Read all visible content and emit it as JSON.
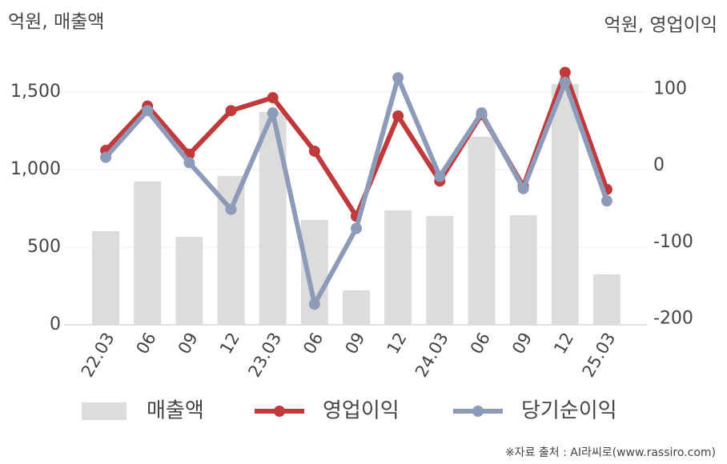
{
  "chart_data": {
    "type": "bar",
    "y_unit_label": "억원, 매출액",
    "y2_unit_label": "억원, 영업이익",
    "source": "※자료 출처 : AI라씨로(www.rassiro.com)",
    "categories": [
      "22.03",
      "06",
      "09",
      "12",
      "23.03",
      "06",
      "09",
      "12",
      "24.03",
      "06",
      "09",
      "12",
      "25.03"
    ],
    "series": [
      {
        "name": "매출액",
        "type": "bar",
        "color": "#dcdcdc",
        "values": [
          603,
          923,
          567,
          959,
          1371,
          675,
          222,
          737,
          701,
          1211,
          706,
          1550,
          325
        ]
      },
      {
        "name": "영업이익",
        "type": "line",
        "axis": "y2",
        "color": "#c0393b",
        "values": [
          20,
          78,
          15,
          72,
          89,
          19,
          -66,
          65,
          -20,
          67,
          -27,
          122,
          -31
        ]
      },
      {
        "name": "당기순이익",
        "type": "line",
        "axis": "y2",
        "color": "#8e9bb8",
        "values": [
          11,
          72,
          4,
          -57,
          69,
          -181,
          -82,
          115,
          -14,
          69,
          -30,
          109,
          -46
        ]
      }
    ],
    "ylim": [
      0,
      1680
    ],
    "yticks": [
      0,
      500,
      {
        "value": 1000,
        "label": "1,000"
      },
      {
        "value": 1500,
        "label": "1,500"
      }
    ],
    "y2lim": [
      -208,
      133
    ],
    "y2ticks": [
      -200,
      -100,
      0,
      100
    ],
    "grid": true
  }
}
